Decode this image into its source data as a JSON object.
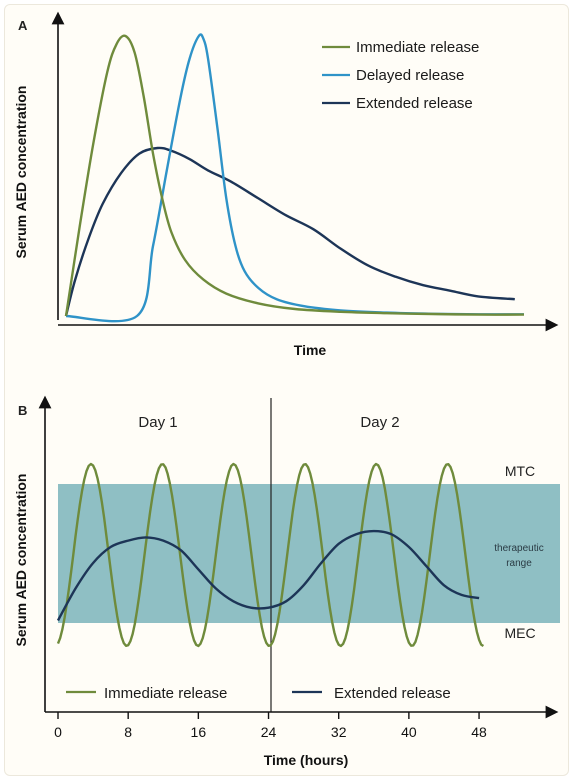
{
  "colors": {
    "immediate": "#6f8b3c",
    "delayed": "#2f93c8",
    "extended": "#1d3557",
    "band": "#8fbfc4",
    "axis": "#111111"
  },
  "chart_data": [
    {
      "type": "line",
      "panel": "A",
      "xlabel": "Time",
      "ylabel": "Serum AED concentration",
      "xlim": [
        0,
        1
      ],
      "ylim": [
        0,
        1
      ],
      "grid": false,
      "legend_position": "top-right",
      "series": [
        {
          "name": "Immediate release",
          "color_key": "immediate",
          "x": [
            0.0,
            0.03,
            0.06,
            0.09,
            0.11,
            0.13,
            0.15,
            0.17,
            0.19,
            0.21,
            0.23,
            0.26,
            0.3,
            0.35,
            0.42,
            0.5,
            0.6,
            0.7,
            0.8,
            0.9,
            1.0
          ],
          "y": [
            0.0,
            0.32,
            0.62,
            0.87,
            0.97,
            1.0,
            0.94,
            0.78,
            0.58,
            0.42,
            0.3,
            0.2,
            0.13,
            0.08,
            0.045,
            0.025,
            0.015,
            0.01,
            0.007,
            0.005,
            0.005
          ]
        },
        {
          "name": "Delayed release",
          "color_key": "delayed",
          "x": [
            0.0,
            0.155,
            0.19,
            0.22,
            0.25,
            0.27,
            0.29,
            0.3,
            0.31,
            0.33,
            0.35,
            0.37,
            0.39,
            0.42,
            0.46,
            0.52,
            0.6,
            0.7,
            0.8,
            0.9,
            1.0
          ],
          "y": [
            0.0,
            0.0,
            0.25,
            0.52,
            0.78,
            0.92,
            1.0,
            0.99,
            0.92,
            0.68,
            0.42,
            0.25,
            0.16,
            0.1,
            0.06,
            0.035,
            0.02,
            0.012,
            0.008,
            0.006,
            0.006
          ]
        },
        {
          "name": "Extended release",
          "color_key": "extended",
          "x": [
            0.0,
            0.02,
            0.05,
            0.08,
            0.12,
            0.16,
            0.2,
            0.23,
            0.27,
            0.31,
            0.36,
            0.42,
            0.48,
            0.54,
            0.6,
            0.66,
            0.72,
            0.78,
            0.84,
            0.9,
            0.98
          ],
          "y": [
            0.0,
            0.13,
            0.28,
            0.4,
            0.51,
            0.58,
            0.6,
            0.59,
            0.56,
            0.52,
            0.48,
            0.42,
            0.36,
            0.31,
            0.24,
            0.18,
            0.14,
            0.11,
            0.09,
            0.07,
            0.06
          ]
        }
      ]
    },
    {
      "type": "line",
      "panel": "B",
      "xlabel": "Time (hours)",
      "ylabel": "Serum AED concentration",
      "xlim": [
        0,
        57
      ],
      "ylim": [
        0,
        1
      ],
      "xticks": [
        0,
        8,
        16,
        24,
        32,
        40,
        48
      ],
      "grid": false,
      "legend_position": "bottom",
      "vertical_line_x": 24,
      "day_labels": [
        {
          "label": "Day 1",
          "x": 12
        },
        {
          "label": "Day 2",
          "x": 36
        }
      ],
      "band": {
        "label": "therapeutic range",
        "upper_label": "MTC",
        "lower_label": "MEC",
        "lower": 0.32,
        "upper": 0.78
      },
      "series": [
        {
          "name": "Immediate release",
          "color_key": "immediate",
          "period_hours": 8.13,
          "x": [
            0,
            4,
            8,
            12,
            16,
            20,
            24,
            28,
            32,
            36,
            40,
            44,
            48
          ],
          "y": [
            0.31,
            0.84,
            0.27,
            0.84,
            0.27,
            0.84,
            0.27,
            0.84,
            0.27,
            0.84,
            0.27,
            0.84,
            0.27
          ]
        },
        {
          "name": "Extended release",
          "color_key": "extended",
          "x": [
            0,
            2,
            4,
            6,
            8,
            10,
            12,
            14,
            16,
            18,
            20,
            22,
            24,
            26,
            28,
            30,
            32,
            34,
            36,
            38,
            40,
            42,
            44,
            46,
            48
          ],
          "y": [
            0.35,
            0.45,
            0.53,
            0.58,
            0.6,
            0.61,
            0.6,
            0.57,
            0.51,
            0.45,
            0.41,
            0.39,
            0.39,
            0.41,
            0.46,
            0.53,
            0.59,
            0.62,
            0.63,
            0.62,
            0.58,
            0.52,
            0.46,
            0.43,
            0.42
          ]
        }
      ]
    }
  ]
}
